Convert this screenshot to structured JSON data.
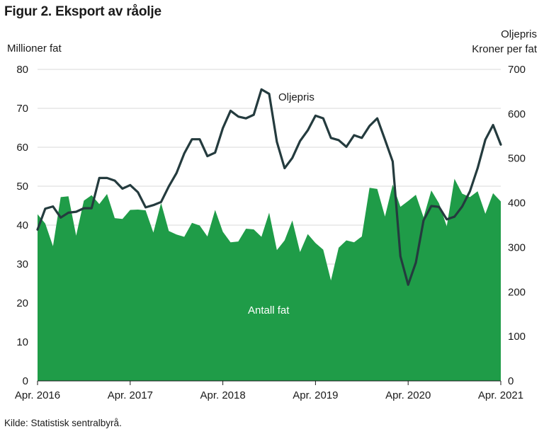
{
  "title": "Figur 2. Eksport av råolje",
  "source": "Kilde: Statistisk sentralbyrå.",
  "colors": {
    "area": "#1f9c48",
    "line": "#243b3e",
    "grid": "#d9d9d9"
  },
  "chart_data": {
    "type": "area",
    "ylabel": "Millioner fat",
    "y2label_line1": "Oljepris",
    "y2label_line2": "Kroner per fat",
    "ylim": [
      0,
      80
    ],
    "y2lim": [
      0,
      700
    ],
    "yticks": [
      "0",
      "10",
      "20",
      "30",
      "40",
      "50",
      "60",
      "70",
      "80"
    ],
    "y2ticks": [
      "0",
      "100",
      "200",
      "300",
      "400",
      "500",
      "600",
      "700"
    ],
    "x_start": "2016-04",
    "x_end": "2021-04",
    "xticks": [
      {
        "date": "2016-04",
        "label": "Apr. 2016"
      },
      {
        "date": "2017-04",
        "label": "Apr. 2017"
      },
      {
        "date": "2018-04",
        "label": "Apr. 2018"
      },
      {
        "date": "2019-04",
        "label": "Apr. 2019"
      },
      {
        "date": "2020-04",
        "label": "Apr. 2020"
      },
      {
        "date": "2021-04",
        "label": "Apr. 2021"
      }
    ],
    "grid": true,
    "series": [
      {
        "name": "Antall fat",
        "axis": "left",
        "type": "area",
        "values": [
          42.8,
          40.4,
          34.6,
          47.2,
          47.4,
          37.3,
          46.3,
          47.7,
          45.4,
          48.0,
          41.8,
          41.6,
          43.9,
          44.0,
          43.8,
          38.1,
          45.7,
          38.5,
          37.6,
          37.0,
          40.6,
          39.9,
          37.1,
          43.9,
          38.3,
          35.6,
          35.8,
          39.1,
          38.9,
          37.0,
          43.2,
          33.6,
          36.1,
          41.2,
          33.1,
          37.7,
          35.4,
          33.7,
          25.8,
          34.2,
          36.1,
          35.6,
          37.1,
          49.6,
          49.3,
          42.2,
          50.4,
          44.7,
          46.2,
          47.8,
          42.0,
          48.9,
          45.6,
          39.7,
          51.9,
          48.1,
          47.2,
          48.7,
          42.9,
          48.2,
          46.1
        ]
      },
      {
        "name": "Oljepris",
        "axis": "right",
        "type": "line",
        "values": [
          340,
          387,
          392,
          367,
          378,
          380,
          388,
          388,
          456,
          456,
          450,
          432,
          440,
          424,
          390,
          395,
          402,
          437,
          467,
          511,
          543,
          543,
          505,
          513,
          568,
          607,
          594,
          590,
          598,
          655,
          645,
          537,
          478,
          501,
          539,
          563,
          596,
          590,
          546,
          541,
          526,
          552,
          546,
          573,
          590,
          542,
          493,
          280,
          216,
          266,
          361,
          393,
          391,
          363,
          369,
          392,
          426,
          478,
          542,
          575,
          531
        ]
      }
    ]
  }
}
